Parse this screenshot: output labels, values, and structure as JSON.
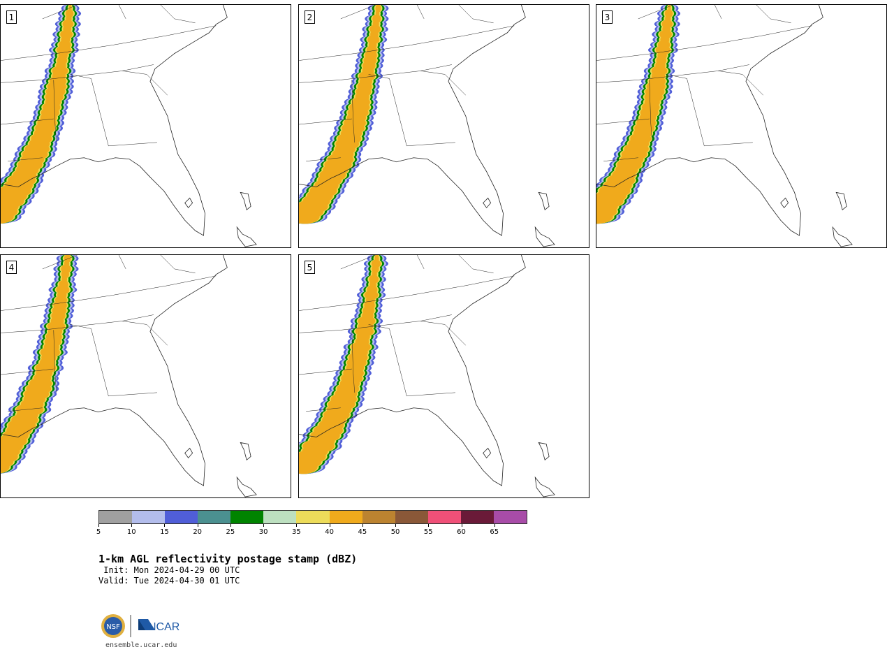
{
  "panels": [
    {
      "label": "1"
    },
    {
      "label": "2"
    },
    {
      "label": "3"
    },
    {
      "label": "4"
    },
    {
      "label": "5"
    }
  ],
  "colorbar": {
    "colors": [
      "#a0a0a0",
      "#b3bdec",
      "#505ed8",
      "#4b9090",
      "#008400",
      "#bde0c0",
      "#eddc5a",
      "#f0aa1c",
      "#bc8330",
      "#8a5838",
      "#f05078",
      "#6a1a38",
      "#a84ca8"
    ],
    "ticks": [
      "5",
      "10",
      "15",
      "20",
      "25",
      "30",
      "35",
      "40",
      "45",
      "50",
      "55",
      "60",
      "65"
    ]
  },
  "title": "1-km AGL reflectivity postage stamp (dBZ)",
  "init": " Init: Mon 2024-04-29 00 UTC",
  "valid": "Valid: Tue 2024-04-30 01 UTC",
  "logo": {
    "nsf": "NSF",
    "ncar": "NCAR"
  },
  "site": "ensemble.ucar.edu"
}
